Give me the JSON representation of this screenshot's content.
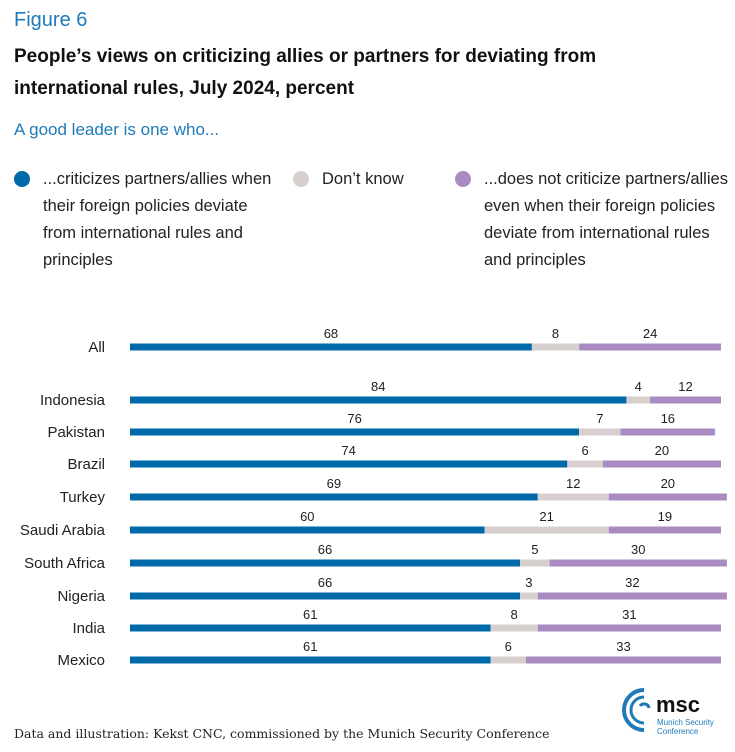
{
  "figure_label": "Figure 6",
  "title": "People’s views on criticizing allies or partners for deviating from international rules, July 2024, percent",
  "subtitle": "A good leader is one who...",
  "colors": {
    "criticize": "#0069aa",
    "dont_know": "#d6cfcd",
    "not_criticize": "#a98bc2",
    "accent": "#1e7ab8"
  },
  "legend": [
    {
      "key": "criticize",
      "label": "...criticizes partners/allies when their foreign policies deviate from international rules and principles"
    },
    {
      "key": "dont_know",
      "label": "Don’t know"
    },
    {
      "key": "not_criticize",
      "label": "...does not criticize partners/allies even when their foreign policies deviate from international rules and principles"
    }
  ],
  "chart_data": {
    "type": "bar",
    "orientation": "horizontal",
    "stacked": true,
    "title": "People’s views on criticizing allies or partners for deviating from international rules, July 2024, percent",
    "subtitle": "A good leader is one who...",
    "xlabel": "",
    "ylabel": "",
    "xlim": [
      0,
      100
    ],
    "grid": false,
    "legend_position": "top",
    "categories": [
      "All",
      "Indonesia",
      "Pakistan",
      "Brazil",
      "Turkey",
      "Saudi Arabia",
      "South Africa",
      "Nigeria",
      "India",
      "Mexico"
    ],
    "series": [
      {
        "name": "...criticizes partners/allies when their foreign policies deviate from international rules and principles",
        "key": "criticize",
        "values": [
          68,
          84,
          76,
          74,
          69,
          60,
          66,
          66,
          61,
          61
        ]
      },
      {
        "name": "Don’t know",
        "key": "dont_know",
        "values": [
          8,
          4,
          7,
          6,
          12,
          21,
          5,
          3,
          8,
          6
        ]
      },
      {
        "name": "...does not criticize partners/allies even when their foreign policies deviate from international rules and principles",
        "key": "not_criticize",
        "values": [
          24,
          12,
          16,
          20,
          20,
          19,
          30,
          32,
          31,
          33
        ]
      }
    ]
  },
  "footer": "Data and illustration: Kekst CNC, commissioned by the Munich Security Conference",
  "logo": {
    "name": "msc",
    "line1": "Munich Security",
    "line2": "Conference"
  }
}
